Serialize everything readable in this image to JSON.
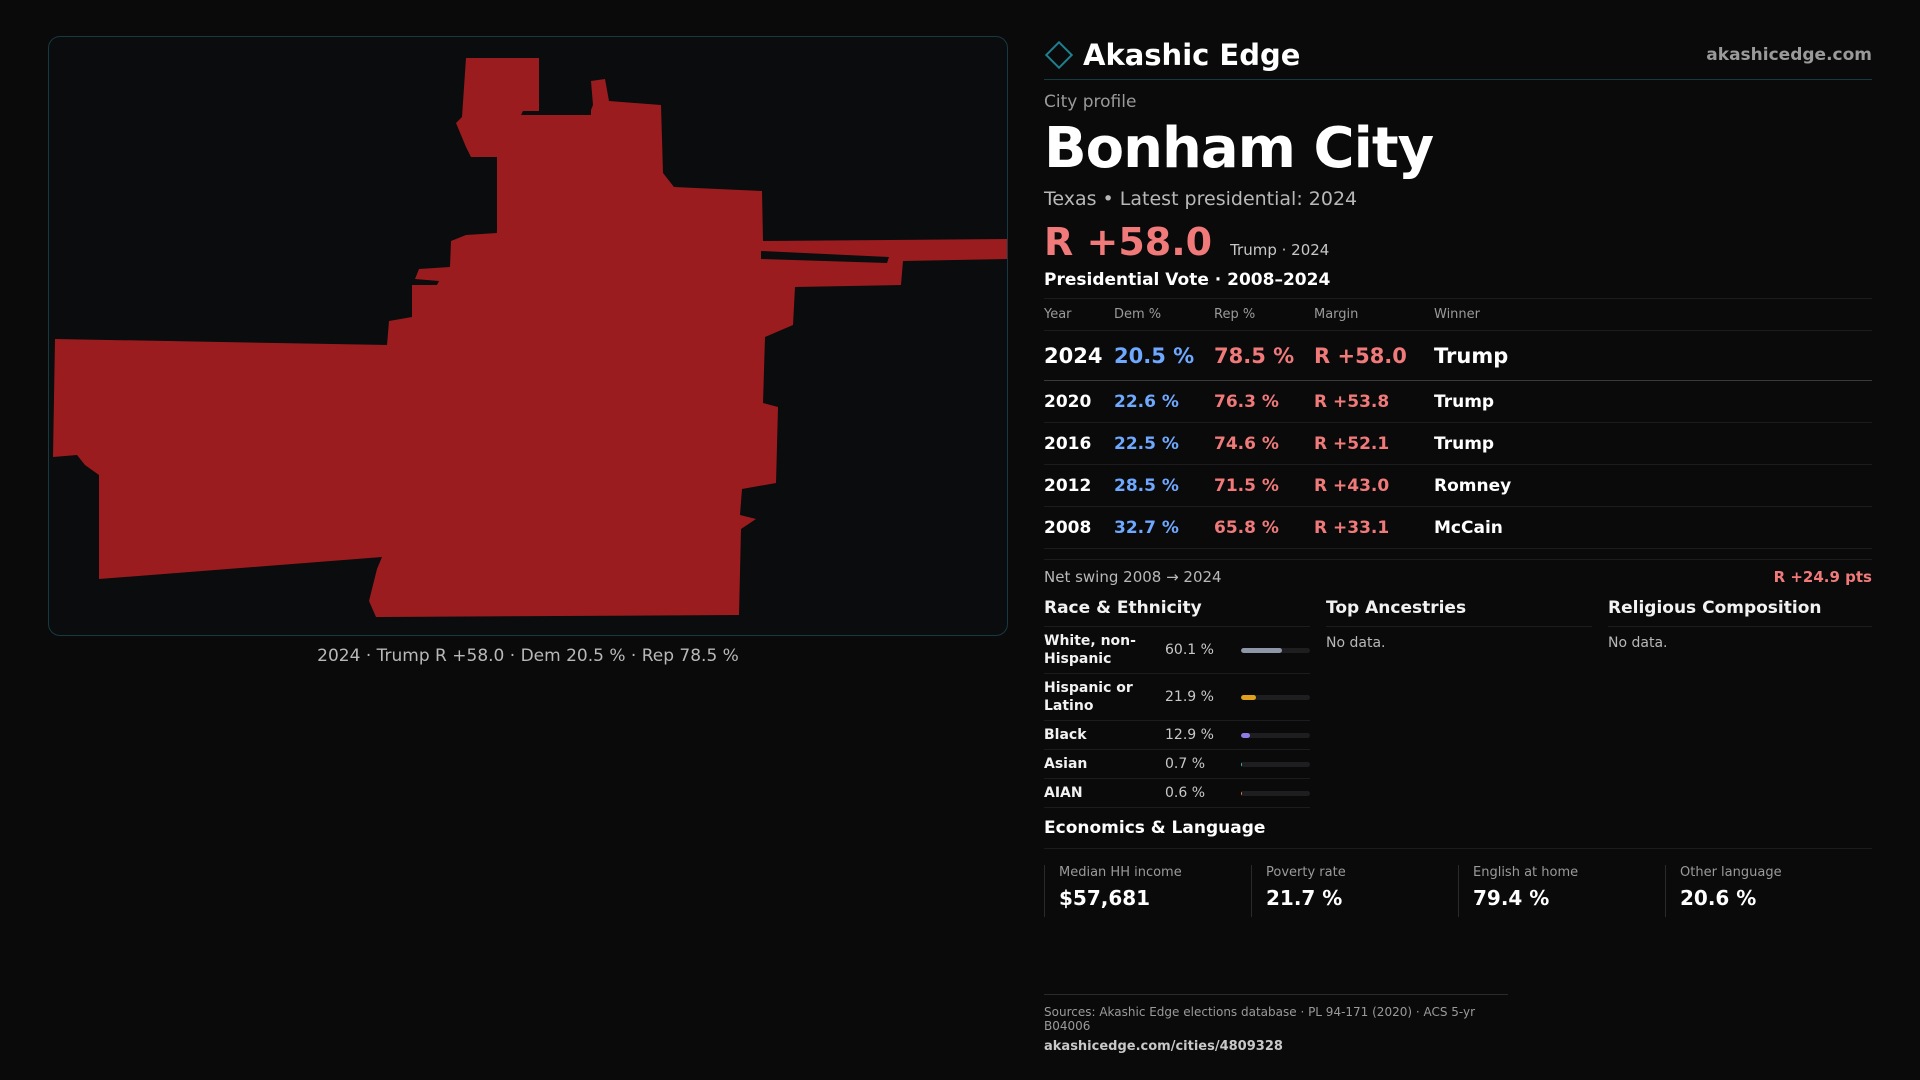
{
  "map": {
    "caption": "2024 · Trump R +58.0 · Dem 20.5 % · Rep 78.5 %",
    "fill_color": "#9b1c1f"
  },
  "brand": {
    "icon": "diamond-icon",
    "name": "Akashic Edge",
    "url": "akashicedge.com"
  },
  "profile": {
    "kicker": "City profile",
    "city": "Bonham City",
    "subtitle": "Texas • Latest presidential: 2024",
    "margin": "R +58.0",
    "margin_note": "Trump · 2024"
  },
  "vote": {
    "title": "Presidential Vote · 2008–2024",
    "headers": {
      "year": "Year",
      "dem": "Dem %",
      "rep": "Rep %",
      "margin": "Margin",
      "winner": "Winner"
    },
    "rows": [
      {
        "year": "2024",
        "dem": "20.5 %",
        "rep": "78.5 %",
        "margin": "R +58.0",
        "winner": "Trump"
      },
      {
        "year": "2020",
        "dem": "22.6 %",
        "rep": "76.3 %",
        "margin": "R +53.8",
        "winner": "Trump"
      },
      {
        "year": "2016",
        "dem": "22.5 %",
        "rep": "74.6 %",
        "margin": "R +52.1",
        "winner": "Trump"
      },
      {
        "year": "2012",
        "dem": "28.5 %",
        "rep": "71.5 %",
        "margin": "R +43.0",
        "winner": "Romney"
      },
      {
        "year": "2008",
        "dem": "32.7 %",
        "rep": "65.8 %",
        "margin": "R +33.1",
        "winner": "McCain"
      }
    ],
    "swing_label": "Net swing 2008 → 2024",
    "swing_value": "R +24.9 pts"
  },
  "race": {
    "title": "Race & Ethnicity",
    "items": [
      {
        "name": "White, non-Hispanic",
        "pct": "60.1 %",
        "value": 60.1,
        "color": "#8e97a8"
      },
      {
        "name": "Hispanic or Latino",
        "pct": "21.9 %",
        "value": 21.9,
        "color": "#e0a21c"
      },
      {
        "name": "Black",
        "pct": "12.9 %",
        "value": 12.9,
        "color": "#8f7ae6"
      },
      {
        "name": "Asian",
        "pct": "0.7 %",
        "value": 0.7,
        "color": "#3fb8b0"
      },
      {
        "name": "AIAN",
        "pct": "0.6 %",
        "value": 0.6,
        "color": "#e07a3f"
      }
    ]
  },
  "ancestries": {
    "title": "Top Ancestries",
    "empty": "No data."
  },
  "religion": {
    "title": "Religious Composition",
    "empty": "No data."
  },
  "economics": {
    "title": "Economics & Language",
    "items": [
      {
        "label": "Median HH income",
        "value": "$57,681"
      },
      {
        "label": "Poverty rate",
        "value": "21.7 %"
      },
      {
        "label": "English at home",
        "value": "79.4 %"
      },
      {
        "label": "Other language",
        "value": "20.6 %"
      }
    ]
  },
  "sources": {
    "line": "Sources: Akashic Edge elections database · PL 94-171 (2020) · ACS 5-yr B04006",
    "url": "akashicedge.com/cities/4809328"
  }
}
